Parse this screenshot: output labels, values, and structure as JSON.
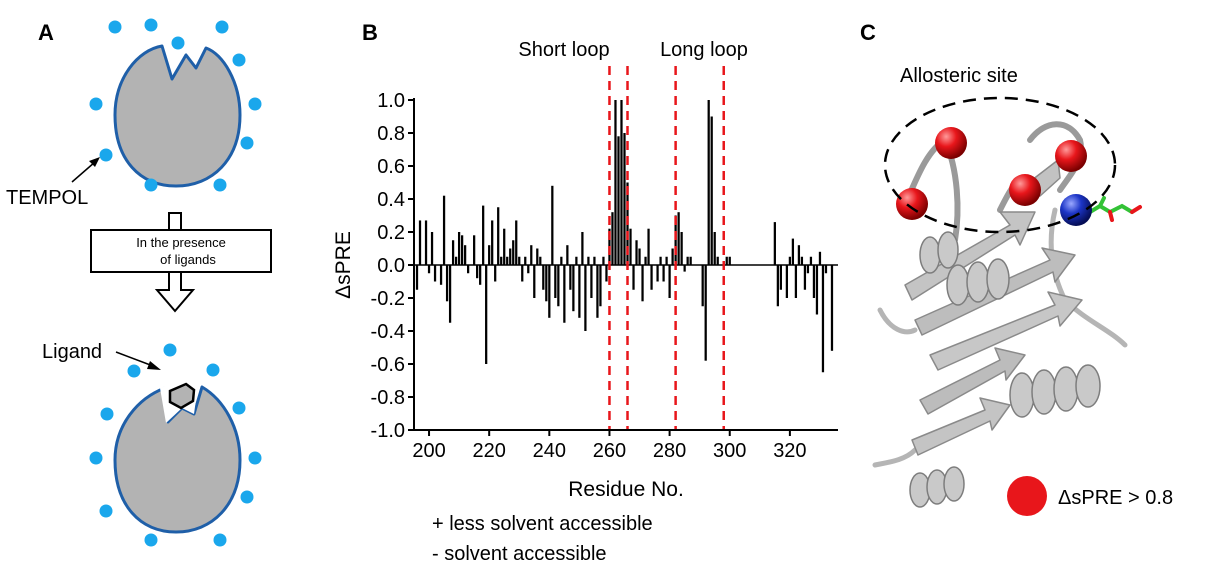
{
  "panels": {
    "a": {
      "letter": "A",
      "tempol_label": "TEMPOL",
      "arrow_box_line1": "In the presence",
      "arrow_box_line2": "of ligands",
      "ligand_label": "Ligand",
      "colors": {
        "protein_fill": "#b3b3b3",
        "protein_stroke": "#1f5fa8",
        "tempol": "#1aa7ec"
      },
      "icons": [
        "protein-blob-icon",
        "tempol-dot-icon",
        "ligand-hexagon-icon"
      ]
    },
    "b": {
      "letter": "B",
      "annotation_short": "Short loop",
      "annotation_long": "Long loop",
      "note_plus": "+ less solvent accessible",
      "note_minus": "- solvent accessible",
      "chart_data": {
        "type": "bar",
        "title": "",
        "xlabel": "Residue No.",
        "ylabel": "ΔsPRE",
        "xlim": [
          195,
          336
        ],
        "ylim": [
          -1.0,
          1.0
        ],
        "xticks": [
          200,
          220,
          240,
          260,
          280,
          300,
          320
        ],
        "yticks": [
          1.0,
          0.8,
          0.6,
          0.4,
          0.2,
          0.0,
          -0.2,
          -0.4,
          -0.6,
          -0.8,
          -1.0
        ],
        "grid": false,
        "reference_lines_x": [
          260,
          266,
          282,
          298
        ],
        "reference_line_color": "#e8161b",
        "bar_color": "#000000",
        "x": [
          196,
          197,
          198,
          199,
          200,
          201,
          202,
          203,
          204,
          205,
          206,
          207,
          208,
          209,
          210,
          211,
          212,
          213,
          214,
          215,
          216,
          217,
          218,
          219,
          220,
          221,
          222,
          223,
          224,
          225,
          226,
          227,
          228,
          229,
          230,
          231,
          232,
          233,
          234,
          235,
          236,
          237,
          238,
          239,
          240,
          241,
          242,
          243,
          244,
          245,
          246,
          247,
          248,
          249,
          250,
          251,
          252,
          253,
          254,
          255,
          256,
          257,
          258,
          259,
          260,
          261,
          262,
          263,
          264,
          265,
          266,
          267,
          268,
          269,
          270,
          271,
          272,
          273,
          274,
          275,
          276,
          277,
          278,
          279,
          280,
          281,
          282,
          283,
          284,
          285,
          286,
          287,
          288,
          289,
          290,
          291,
          292,
          293,
          294,
          295,
          296,
          297,
          298,
          299,
          300,
          315,
          316,
          317,
          318,
          319,
          320,
          321,
          322,
          323,
          324,
          325,
          326,
          327,
          328,
          329,
          330,
          331,
          332,
          333,
          334
        ],
        "values": [
          -0.15,
          0.27,
          0.0,
          0.27,
          -0.05,
          0.2,
          -0.1,
          0.0,
          -0.12,
          0.42,
          -0.22,
          -0.35,
          0.15,
          0.05,
          0.2,
          0.18,
          0.12,
          -0.05,
          0.0,
          0.18,
          -0.08,
          -0.12,
          0.36,
          -0.6,
          0.12,
          0.27,
          -0.1,
          0.35,
          0.05,
          0.22,
          0.05,
          0.1,
          0.15,
          0.27,
          0.05,
          -0.1,
          0.05,
          -0.05,
          0.12,
          -0.2,
          0.1,
          0.05,
          -0.15,
          -0.22,
          -0.32,
          0.48,
          -0.2,
          -0.25,
          0.05,
          -0.35,
          0.12,
          -0.15,
          -0.28,
          0.05,
          -0.32,
          0.2,
          -0.4,
          0.05,
          -0.2,
          0.05,
          -0.32,
          -0.25,
          0.05,
          -0.1,
          0.22,
          0.32,
          1.0,
          0.78,
          1.0,
          0.8,
          0.5,
          0.22,
          -0.15,
          0.15,
          0.1,
          -0.22,
          0.05,
          0.22,
          -0.15,
          0.0,
          -0.1,
          0.05,
          -0.1,
          0.05,
          -0.2,
          0.1,
          0.3,
          0.32,
          0.2,
          -0.04,
          0.05,
          0.05,
          0.0,
          0.0,
          0.0,
          -0.25,
          -0.58,
          1.0,
          0.9,
          0.2,
          0.05,
          0.0,
          0.0,
          0.05,
          0.05,
          0.26,
          -0.25,
          -0.15,
          0.0,
          -0.2,
          0.05,
          0.16,
          -0.2,
          0.12,
          0.05,
          -0.15,
          -0.05,
          0.05,
          -0.2,
          -0.3,
          0.08,
          -0.65,
          -0.05,
          0.0,
          -0.52
        ]
      }
    },
    "c": {
      "letter": "C",
      "allosteric_label": "Allosteric site",
      "legend_label": "ΔsPRE > 0.8",
      "colors": {
        "cartoon": "#bdbdbd",
        "highlight_sphere": "#e8161b",
        "blue_sphere": "#1c35c7",
        "ligand_stick": "#33c236"
      },
      "icons": [
        "protein-cartoon-icon",
        "red-sphere-icon",
        "blue-sphere-icon",
        "ligand-stick-icon"
      ]
    }
  }
}
